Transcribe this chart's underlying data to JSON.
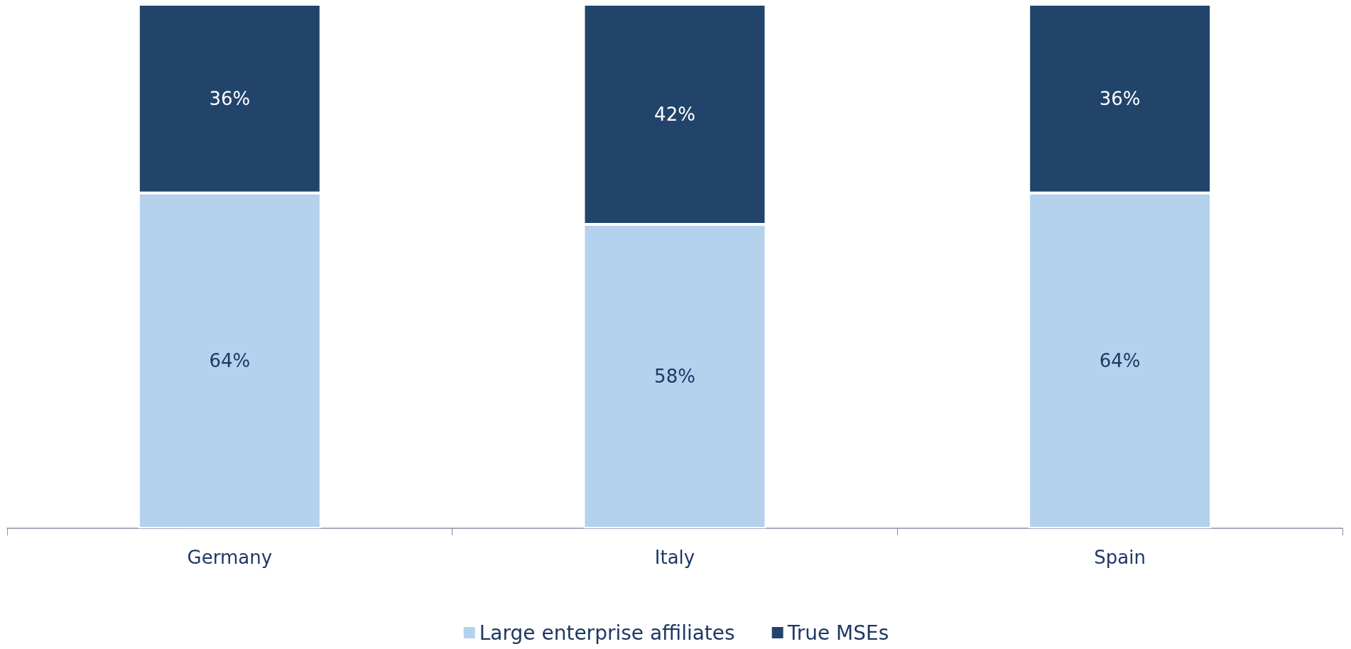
{
  "chart_data": {
    "type": "bar",
    "stacked": true,
    "categories": [
      "Germany",
      "Italy",
      "Spain"
    ],
    "series": [
      {
        "name": "Large enterprise affiliates",
        "color": "#b4d1ee",
        "values": [
          64,
          58,
          64
        ],
        "value_labels": [
          "64%",
          "58%",
          "64%"
        ]
      },
      {
        "name": "True MSEs",
        "color": "#22446b",
        "values": [
          36,
          42,
          36
        ],
        "value_labels": [
          "36%",
          "42%",
          "36%"
        ]
      }
    ],
    "legend": "bottom"
  }
}
